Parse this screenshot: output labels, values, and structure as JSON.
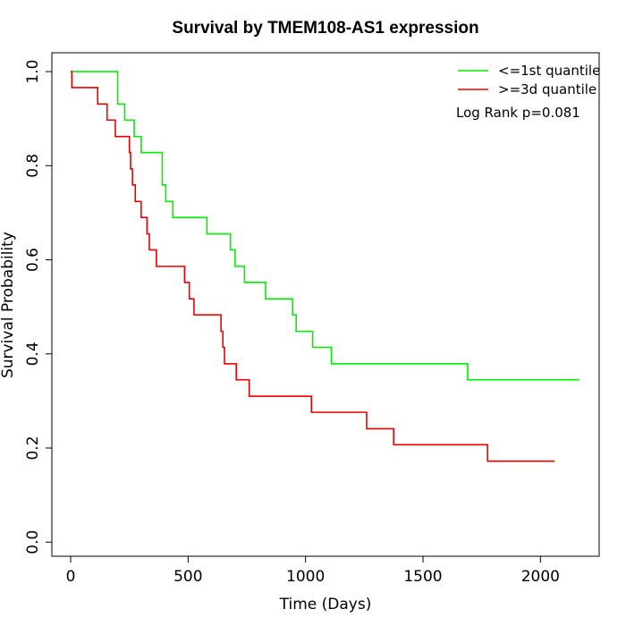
{
  "chart_data": {
    "type": "line",
    "title": "Survival by TMEM108-AS1 expression",
    "xlabel": "Time (Days)",
    "ylabel": "Survival Probability",
    "xlim": [
      -80,
      2250
    ],
    "ylim": [
      -0.03,
      1.04
    ],
    "xticks": [
      0,
      500,
      1000,
      1500,
      2000
    ],
    "yticks": [
      0.0,
      0.2,
      0.4,
      0.6,
      0.8,
      1.0
    ],
    "xtick_labels": [
      "0",
      "500",
      "1000",
      "1500",
      "2000"
    ],
    "ytick_labels": [
      "0.0",
      "0.2",
      "0.4",
      "0.6",
      "0.8",
      "1.0"
    ],
    "legend_position": "top-right",
    "annotation": "Log Rank p=0.081",
    "series": [
      {
        "name": "<=1st quantile",
        "color": "#00ee00",
        "steps": [
          [
            0,
            1.0
          ],
          [
            200,
            0.931
          ],
          [
            230,
            0.897
          ],
          [
            270,
            0.862
          ],
          [
            300,
            0.828
          ],
          [
            390,
            0.759
          ],
          [
            405,
            0.724
          ],
          [
            435,
            0.69
          ],
          [
            580,
            0.655
          ],
          [
            680,
            0.621
          ],
          [
            700,
            0.586
          ],
          [
            740,
            0.552
          ],
          [
            830,
            0.517
          ],
          [
            945,
            0.483
          ],
          [
            960,
            0.448
          ],
          [
            1030,
            0.414
          ],
          [
            1110,
            0.379
          ],
          [
            1690,
            0.345
          ],
          [
            2165,
            0.345
          ]
        ]
      },
      {
        "name": ">=3d quantile",
        "color": "#ee0000",
        "steps": [
          [
            0,
            1.0
          ],
          [
            5,
            0.966
          ],
          [
            115,
            0.931
          ],
          [
            155,
            0.897
          ],
          [
            190,
            0.862
          ],
          [
            250,
            0.828
          ],
          [
            255,
            0.793
          ],
          [
            263,
            0.759
          ],
          [
            275,
            0.724
          ],
          [
            300,
            0.69
          ],
          [
            325,
            0.655
          ],
          [
            335,
            0.621
          ],
          [
            365,
            0.586
          ],
          [
            485,
            0.552
          ],
          [
            505,
            0.517
          ],
          [
            525,
            0.483
          ],
          [
            640,
            0.448
          ],
          [
            648,
            0.414
          ],
          [
            655,
            0.379
          ],
          [
            705,
            0.345
          ],
          [
            760,
            0.31
          ],
          [
            1025,
            0.276
          ],
          [
            1260,
            0.241
          ],
          [
            1375,
            0.207
          ],
          [
            1775,
            0.172
          ],
          [
            2060,
            0.172
          ]
        ]
      }
    ]
  }
}
